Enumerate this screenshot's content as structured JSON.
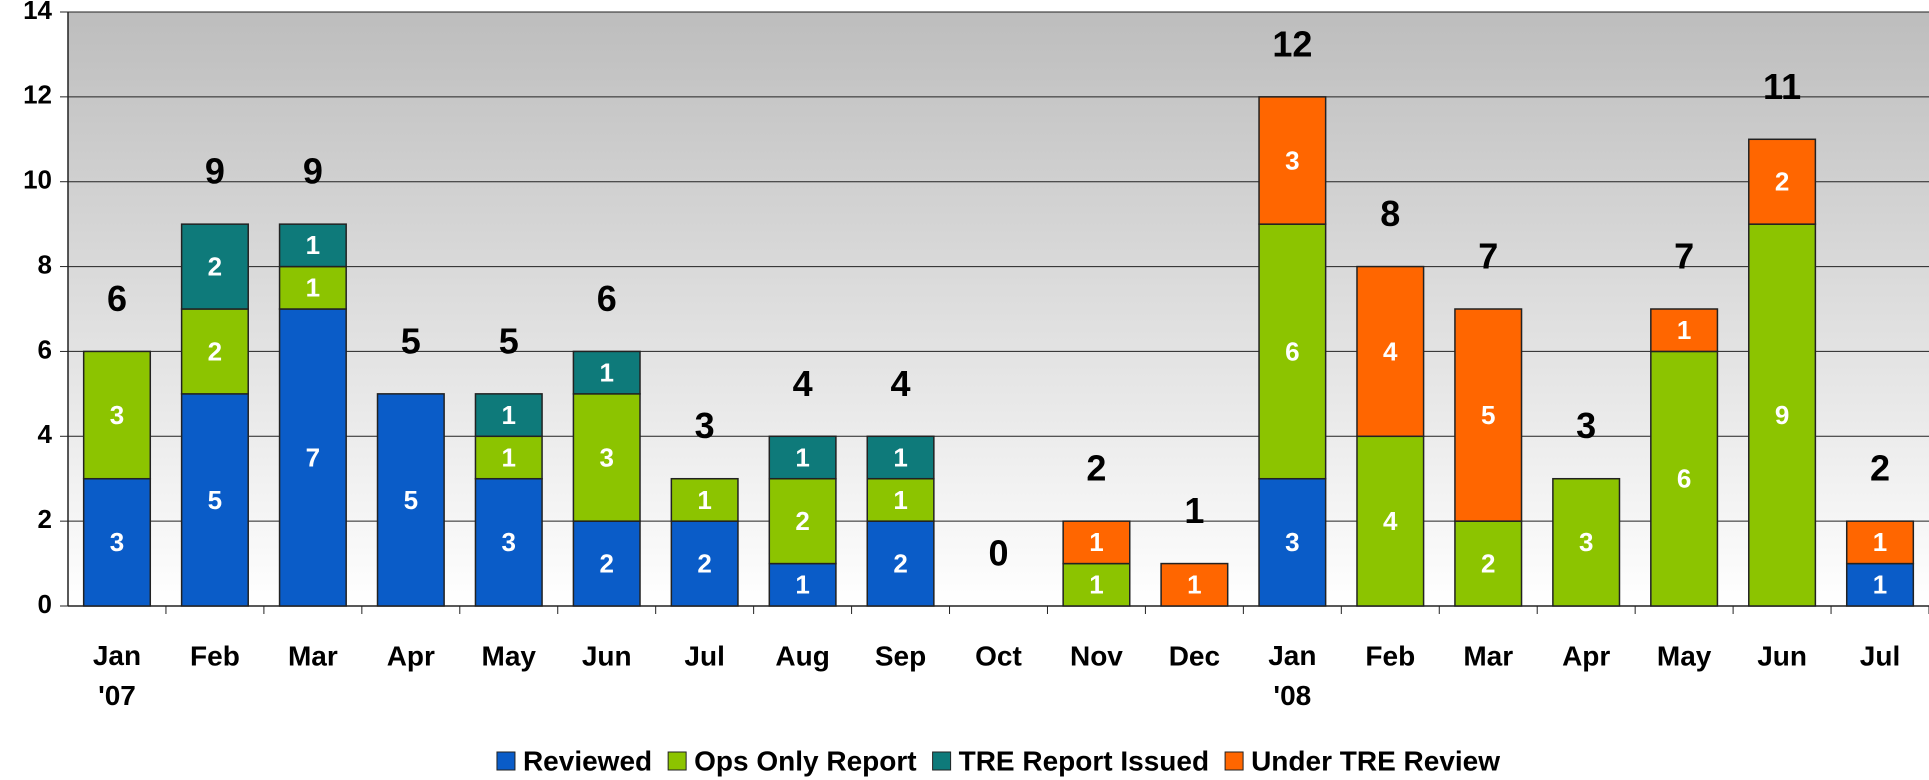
{
  "chart_data": {
    "type": "stacked_bar",
    "categories": [
      "Jan '07",
      "Feb",
      "Mar",
      "Apr",
      "May",
      "Jun",
      "Jul",
      "Aug",
      "Sep",
      "Oct",
      "Nov",
      "Dec",
      "Jan '08",
      "Feb",
      "Mar",
      "Apr",
      "May",
      "Jun",
      "Jul"
    ],
    "series": [
      {
        "name": "Reviewed",
        "color": "#0a5cc8",
        "values": [
          3,
          5,
          7,
          5,
          3,
          2,
          2,
          1,
          2,
          null,
          null,
          null,
          3,
          null,
          null,
          null,
          null,
          null,
          1
        ]
      },
      {
        "name": "Ops Only Report",
        "color": "#8cc400",
        "values": [
          3,
          2,
          1,
          null,
          1,
          3,
          1,
          2,
          1,
          null,
          1,
          null,
          6,
          4,
          2,
          3,
          6,
          9,
          null
        ]
      },
      {
        "name": "TRE Report Issued",
        "color": "#0e7a7a",
        "values": [
          null,
          2,
          1,
          null,
          1,
          1,
          null,
          1,
          1,
          null,
          null,
          null,
          null,
          null,
          null,
          null,
          null,
          null,
          null
        ]
      },
      {
        "name": "Under TRE Review",
        "color": "#ff6600",
        "values": [
          null,
          null,
          null,
          null,
          null,
          null,
          null,
          null,
          null,
          null,
          1,
          1,
          3,
          4,
          5,
          null,
          1,
          2,
          1
        ]
      }
    ],
    "totals": [
      6,
      9,
      9,
      5,
      5,
      6,
      3,
      4,
      4,
      0,
      2,
      1,
      12,
      8,
      7,
      3,
      7,
      11,
      2
    ],
    "ylim": [
      0,
      14
    ],
    "yticks": [
      0,
      2,
      4,
      6,
      8,
      10,
      12,
      14
    ],
    "grid": true,
    "legend": "bottom"
  }
}
